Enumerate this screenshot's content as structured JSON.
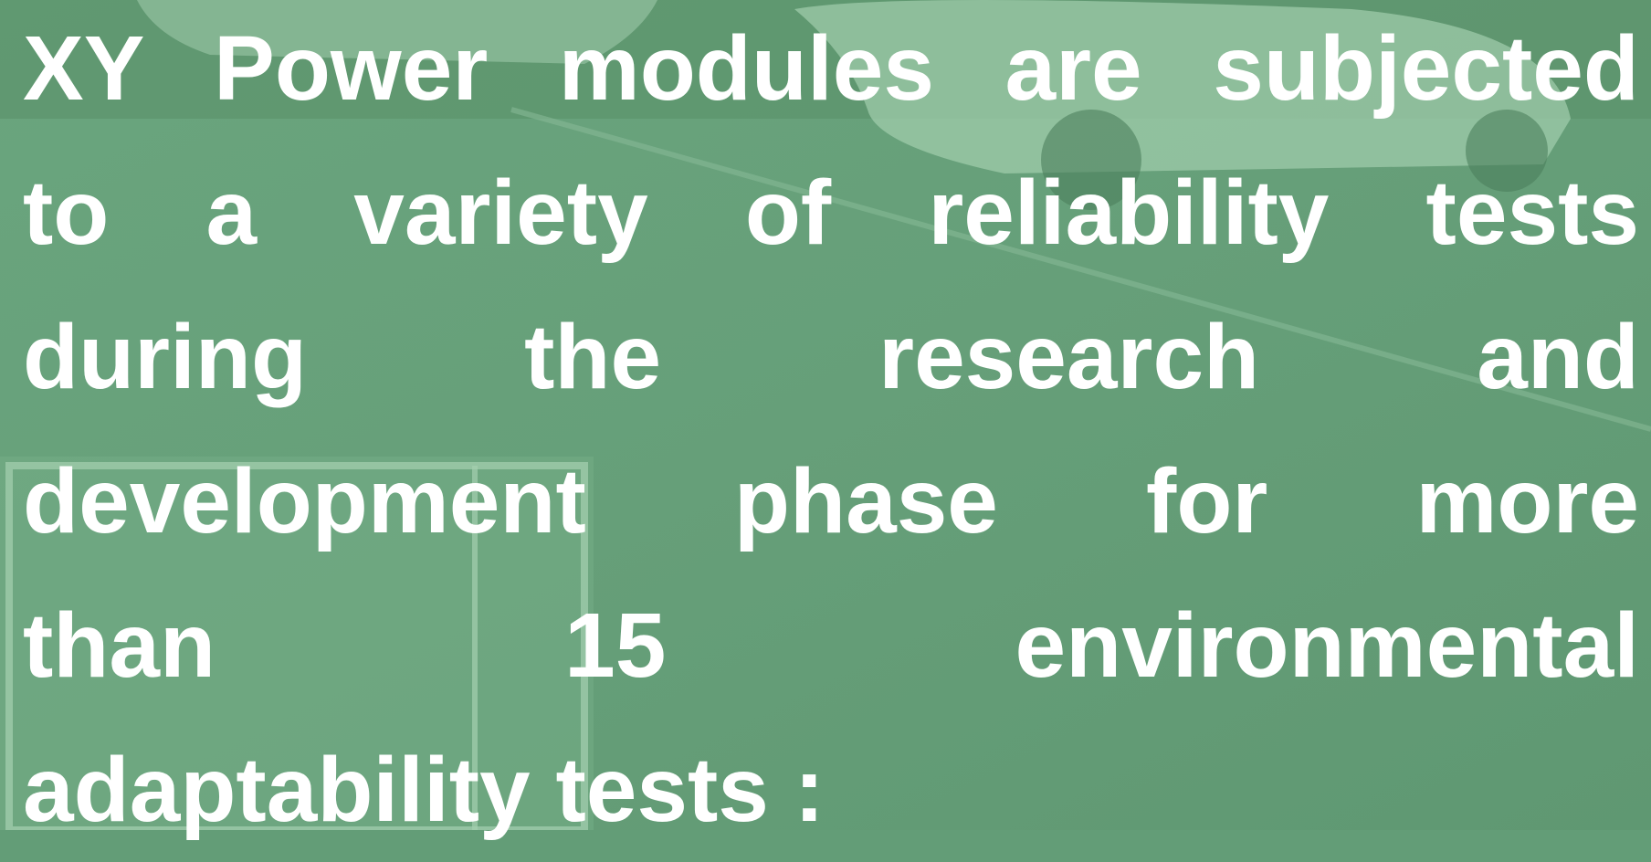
{
  "paragraph": {
    "lines": [
      "XY Power modules are subjected",
      "to a variety of reliability tests",
      "during the research and",
      "development phase for more",
      "than 15 environmental",
      "adaptability tests :"
    ]
  }
}
